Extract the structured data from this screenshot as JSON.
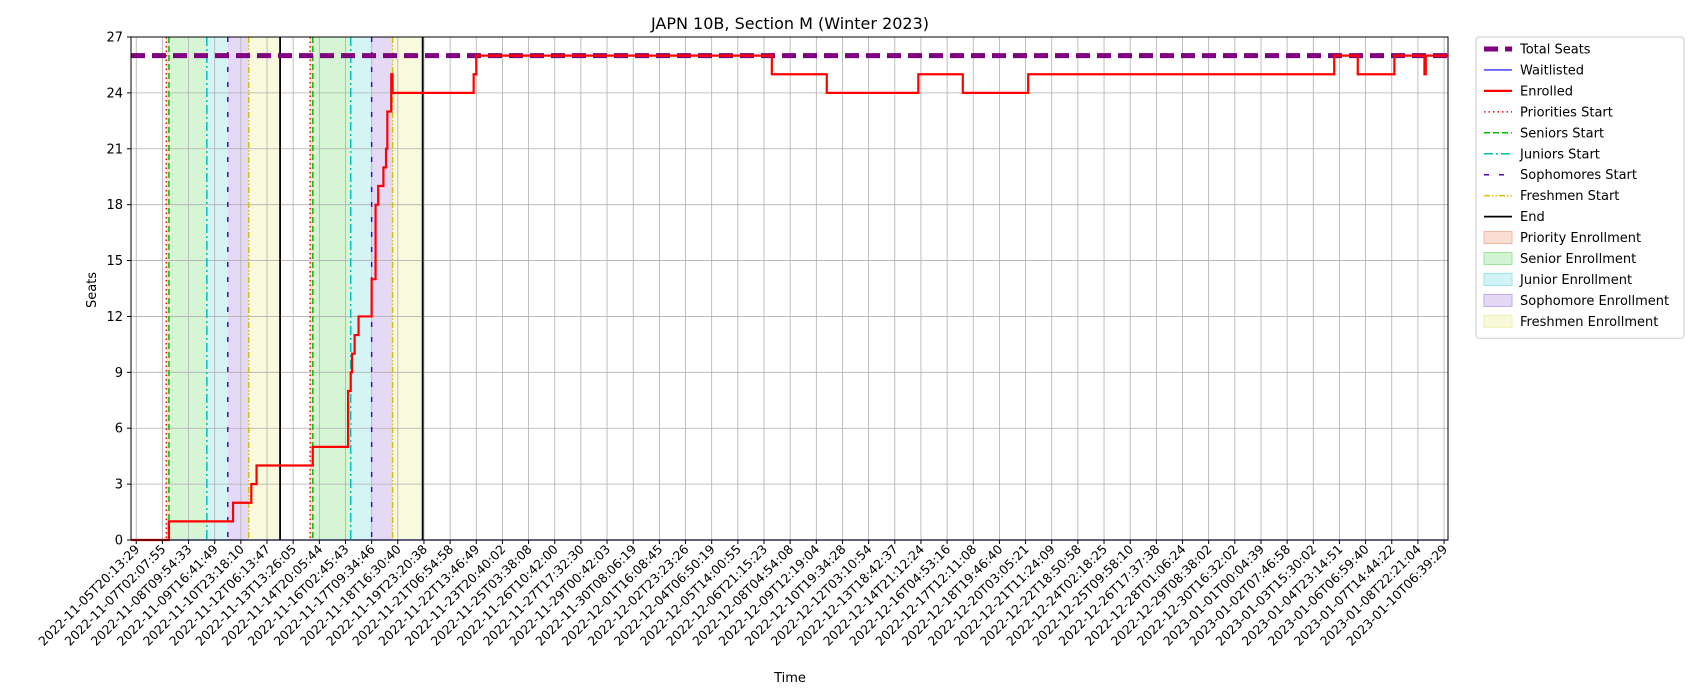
{
  "chart_data": {
    "type": "line",
    "title": "JAPN 10B, Section M (Winter 2023)",
    "xlabel": "Time",
    "ylabel": "Seats",
    "ylim": [
      0,
      27
    ],
    "yticks": [
      0,
      3,
      6,
      9,
      12,
      15,
      18,
      21,
      24,
      27
    ],
    "grid": true,
    "legend_position": "outside-right",
    "x_tick_labels": [
      "2022-11-05T20:13:29",
      "2022-11-07T02:07:55",
      "2022-11-08T09:54:33",
      "2022-11-09T16:41:49",
      "2022-11-10T23:18:10",
      "2022-11-12T06:13:47",
      "2022-11-13T13:26:05",
      "2022-11-14T20:05:44",
      "2022-11-16T02:45:43",
      "2022-11-17T09:34:46",
      "2022-11-18T16:30:40",
      "2022-11-19T23:20:38",
      "2022-11-21T06:54:58",
      "2022-11-22T13:46:49",
      "2022-11-23T20:40:02",
      "2022-11-25T03:38:08",
      "2022-11-26T10:42:00",
      "2022-11-27T17:32:30",
      "2022-11-29T00:42:03",
      "2022-11-30T08:06:19",
      "2022-12-01T16:08:45",
      "2022-12-02T23:23:26",
      "2022-12-04T06:50:19",
      "2022-12-05T14:00:55",
      "2022-12-06T21:15:23",
      "2022-12-08T04:54:08",
      "2022-12-09T12:19:04",
      "2022-12-10T19:34:28",
      "2022-12-12T03:10:54",
      "2022-12-13T18:42:37",
      "2022-12-14T21:12:24",
      "2022-12-16T04:53:16",
      "2022-12-17T12:11:08",
      "2022-12-18T19:46:40",
      "2022-12-20T03:05:21",
      "2022-12-21T11:24:09",
      "2022-12-22T18:50:58",
      "2022-12-24T02:18:25",
      "2022-12-25T09:58:10",
      "2022-12-26T17:37:38",
      "2022-12-28T01:06:24",
      "2022-12-29T08:38:02",
      "2022-12-30T16:32:02",
      "2023-01-01T00:04:39",
      "2023-01-02T07:46:58",
      "2023-01-03T15:30:02",
      "2023-01-04T23:14:51",
      "2023-01-06T06:59:40",
      "2023-01-07T14:44:22",
      "2023-01-08T22:21:04",
      "2023-01-10T06:39:29"
    ],
    "x_index_range": [
      -0.2,
      50.15
    ],
    "series": [
      {
        "name": "Total Seats",
        "color": "#800080",
        "style": "dashed-thick",
        "x": [
          -0.2,
          50.15
        ],
        "y": [
          26,
          26
        ]
      },
      {
        "name": "Waitlisted",
        "color": "#0000ff",
        "style": "solid-thin",
        "x": [
          -0.2,
          50.15
        ],
        "y": [
          0,
          0
        ]
      },
      {
        "name": "Enrolled",
        "color": "#ff0000",
        "style": "steps",
        "x": [
          -0.2,
          1.25,
          3.7,
          4.4,
          4.6,
          5.0,
          6.7,
          6.75,
          8.1,
          8.2,
          8.25,
          8.35,
          8.4,
          8.5,
          9.0,
          9.15,
          9.25,
          9.3,
          9.45,
          9.55,
          9.6,
          9.75,
          9.8,
          9.9,
          10.0,
          12.9,
          13.0,
          24.3,
          26.4,
          29.9,
          31.6,
          34.1,
          45.8,
          46.7,
          48.1,
          49.25,
          49.3,
          49.35,
          50.15
        ],
        "y": [
          0,
          1,
          2,
          3,
          4,
          4,
          4,
          5,
          8,
          9,
          10,
          11,
          11,
          12,
          14,
          18,
          19,
          19,
          20,
          21,
          23,
          25,
          24,
          24,
          24,
          25,
          26,
          25,
          24,
          25,
          24,
          25,
          26,
          25,
          26,
          25,
          26,
          26,
          26
        ]
      }
    ],
    "vlines": [
      {
        "name": "Priorities Start",
        "color": "#ff0000",
        "style": "dotted",
        "x": [
          1.15,
          6.65
        ]
      },
      {
        "name": "Seniors Start",
        "color": "#00c000",
        "style": "dashed",
        "x": [
          1.25,
          6.75
        ]
      },
      {
        "name": "Juniors Start",
        "color": "#00bfbf",
        "style": "dashdot",
        "x": [
          2.7,
          8.2
        ]
      },
      {
        "name": "Sophomores Start",
        "color": "#5000d0",
        "style": "loosedash",
        "x": [
          3.5,
          9.0
        ]
      },
      {
        "name": "Freshmen Start",
        "color": "#d8c000",
        "style": "dashdotdot",
        "x": [
          4.3,
          9.8
        ]
      },
      {
        "name": "End",
        "color": "#000000",
        "style": "solid",
        "x": [
          5.5,
          10.95
        ]
      }
    ],
    "spans": [
      {
        "name": "Priority Enrollment",
        "color": "#f4b6a0",
        "ranges": [
          [
            1.15,
            1.25
          ],
          [
            6.65,
            6.75
          ]
        ]
      },
      {
        "name": "Senior Enrollment",
        "color": "#9be69b",
        "ranges": [
          [
            1.25,
            2.7
          ],
          [
            6.75,
            8.2
          ]
        ]
      },
      {
        "name": "Junior Enrollment",
        "color": "#9be5ea",
        "ranges": [
          [
            2.7,
            3.5
          ],
          [
            8.2,
            9.0
          ]
        ]
      },
      {
        "name": "Sophomore Enrollment",
        "color": "#c2a8ea",
        "ranges": [
          [
            3.5,
            4.3
          ],
          [
            9.0,
            9.8
          ]
        ]
      },
      {
        "name": "Freshmen Enrollment",
        "color": "#f0f0b0",
        "ranges": [
          [
            4.3,
            5.5
          ],
          [
            9.8,
            10.95
          ]
        ]
      }
    ],
    "legend": [
      {
        "label": "Total Seats",
        "kind": "line",
        "color": "#800080",
        "style": "dashed-thick"
      },
      {
        "label": "Waitlisted",
        "kind": "line",
        "color": "#0000ff",
        "style": "solid-thin"
      },
      {
        "label": "Enrolled",
        "kind": "line",
        "color": "#ff0000",
        "style": "solid-thick"
      },
      {
        "label": "Priorities Start",
        "kind": "line",
        "color": "#ff0000",
        "style": "dotted"
      },
      {
        "label": "Seniors Start",
        "kind": "line",
        "color": "#00c000",
        "style": "dashed"
      },
      {
        "label": "Juniors Start",
        "kind": "line",
        "color": "#00bfbf",
        "style": "dashdot"
      },
      {
        "label": "Sophomores Start",
        "kind": "line",
        "color": "#5000d0",
        "style": "loosedash"
      },
      {
        "label": "Freshmen Start",
        "kind": "line",
        "color": "#d8c000",
        "style": "dashdotdot"
      },
      {
        "label": "End",
        "kind": "line",
        "color": "#000000",
        "style": "solid"
      },
      {
        "label": "Priority Enrollment",
        "kind": "patch",
        "color": "#f4b6a0"
      },
      {
        "label": "Senior Enrollment",
        "kind": "patch",
        "color": "#9be69b"
      },
      {
        "label": "Junior Enrollment",
        "kind": "patch",
        "color": "#9be5ea"
      },
      {
        "label": "Sophomore Enrollment",
        "kind": "patch",
        "color": "#c2a8ea"
      },
      {
        "label": "Freshmen Enrollment",
        "kind": "patch",
        "color": "#f0f0b0"
      }
    ]
  }
}
